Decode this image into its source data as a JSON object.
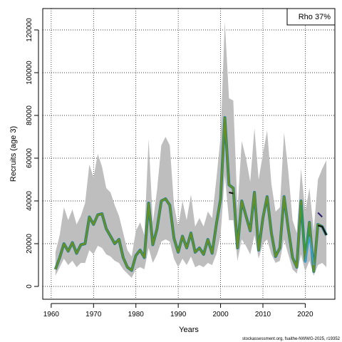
{
  "chart_data": {
    "type": "line",
    "xlabel": "Years",
    "ylabel": "Recruits (age 3)",
    "xlim": [
      1958,
      2027
    ],
    "ylim": [
      -6000,
      130000
    ],
    "xticks": [
      1960,
      1970,
      1980,
      1990,
      2000,
      2010,
      2020
    ],
    "yticks": [
      0,
      20000,
      40000,
      60000,
      80000,
      100000,
      120000
    ],
    "grid": true,
    "legend": {
      "text": "Rho 37%",
      "position": "top-right"
    },
    "source": "stockassessment.org, fsaithe-NWWG-2025, r19352",
    "colors": {
      "band": "#bebebe",
      "main": "#6b8e23",
      "main_edge": "#1e6fb5",
      "retro_dark": "#2a1a6e",
      "retro_black": "#111111",
      "retro_green": "#2e9a4a",
      "retro_blue": "#3aa0d8"
    },
    "x": [
      1961,
      1962,
      1963,
      1964,
      1965,
      1966,
      1967,
      1968,
      1969,
      1970,
      1971,
      1972,
      1973,
      1974,
      1975,
      1976,
      1977,
      1978,
      1979,
      1980,
      1981,
      1982,
      1983,
      1984,
      1985,
      1986,
      1987,
      1988,
      1989,
      1990,
      1991,
      1992,
      1993,
      1994,
      1995,
      1996,
      1997,
      1998,
      1999,
      2000,
      2001,
      2002,
      2003,
      2004,
      2005,
      2006,
      2007,
      2008,
      2009,
      2010,
      2011,
      2012,
      2013,
      2014,
      2015,
      2016,
      2017,
      2018,
      2019,
      2020,
      2021,
      2022,
      2023,
      2024,
      2025
    ],
    "band_upper": [
      16000,
      24000,
      37000,
      31000,
      36000,
      29000,
      33000,
      39000,
      57000,
      51000,
      62000,
      56000,
      46000,
      44000,
      38000,
      33000,
      25000,
      17000,
      14000,
      26000,
      30000,
      24000,
      69000,
      30000,
      45000,
      66000,
      70000,
      66000,
      38000,
      28000,
      40000,
      31000,
      43000,
      28000,
      32000,
      28000,
      35000,
      32000,
      50000,
      70000,
      124000,
      88000,
      87000,
      36000,
      68000,
      60000,
      49000,
      74000,
      50000,
      62000,
      73000,
      48000,
      35000,
      37000,
      72000,
      54000,
      31000,
      25000,
      55000,
      35000,
      46000,
      26000,
      50000,
      55000,
      59000
    ],
    "band_lower": [
      5000,
      9000,
      13000,
      10000,
      12000,
      9000,
      11000,
      11000,
      17000,
      15000,
      19000,
      18000,
      15000,
      14000,
      12000,
      11000,
      8000,
      6000,
      4000,
      8000,
      9000,
      8000,
      18000,
      11000,
      15000,
      21000,
      22000,
      21000,
      13000,
      9000,
      13000,
      10000,
      14000,
      9000,
      10000,
      9000,
      11000,
      10000,
      15000,
      24000,
      52000,
      31000,
      31000,
      12000,
      22000,
      19000,
      15000,
      24000,
      13000,
      20000,
      22000,
      15000,
      11000,
      12000,
      22000,
      15000,
      8000,
      6000,
      15000,
      7000,
      12000,
      5000,
      10000,
      11000,
      9000
    ],
    "series": [
      {
        "values": [
          8000,
          13500,
          20000,
          16500,
          20500,
          15500,
          19500,
          20000,
          32500,
          29000,
          33500,
          34000,
          27000,
          23500,
          20000,
          22000,
          13500,
          9000,
          7500,
          14500,
          17000,
          13500,
          39000,
          19500,
          27000,
          40000,
          41000,
          38000,
          22500,
          16000,
          23500,
          18000,
          25000,
          16000,
          18000,
          15000,
          22000,
          15500,
          29000,
          41000,
          79000,
          47500,
          46000,
          18000,
          40000,
          33000,
          26000,
          44000,
          17000,
          32000,
          42000,
          25000,
          14000,
          18000,
          42000,
          27000,
          13500,
          9000,
          40000,
          12000,
          30000,
          7000,
          29000,
          28000,
          24000
        ]
      },
      {
        "values": [
          null,
          null,
          null,
          null,
          null,
          null,
          null,
          null,
          null,
          null,
          null,
          null,
          null,
          null,
          null,
          null,
          null,
          null,
          null,
          null,
          null,
          null,
          null,
          null,
          null,
          null,
          null,
          null,
          null,
          null,
          null,
          null,
          null,
          null,
          null,
          null,
          null,
          null,
          null,
          null,
          null,
          null,
          null,
          null,
          null,
          null,
          null,
          null,
          null,
          null,
          null,
          null,
          null,
          null,
          null,
          null,
          null,
          null,
          null,
          null,
          null,
          null,
          34500,
          32500,
          null
        ]
      },
      {
        "values": [
          null,
          null,
          null,
          null,
          null,
          null,
          null,
          null,
          null,
          null,
          null,
          null,
          null,
          null,
          null,
          null,
          null,
          null,
          null,
          null,
          null,
          null,
          null,
          null,
          null,
          null,
          null,
          null,
          null,
          null,
          null,
          null,
          null,
          null,
          null,
          null,
          null,
          null,
          null,
          null,
          null,
          44000,
          43500,
          null,
          null,
          null,
          null,
          null,
          null,
          null,
          null,
          null,
          null,
          null,
          null,
          null,
          null,
          null,
          null,
          null,
          null,
          null,
          28500,
          28000,
          24000
        ]
      },
      {
        "values": [
          null,
          null,
          null,
          null,
          null,
          null,
          null,
          null,
          null,
          null,
          null,
          null,
          null,
          null,
          null,
          null,
          null,
          null,
          null,
          null,
          null,
          null,
          null,
          null,
          null,
          null,
          null,
          null,
          null,
          null,
          null,
          null,
          null,
          null,
          null,
          null,
          null,
          null,
          null,
          null,
          null,
          null,
          null,
          null,
          null,
          null,
          null,
          null,
          null,
          null,
          null,
          null,
          null,
          null,
          null,
          null,
          null,
          null,
          38000,
          17000,
          28000,
          null,
          null,
          null,
          null
        ]
      },
      {
        "values": [
          null,
          null,
          null,
          null,
          null,
          null,
          null,
          null,
          null,
          null,
          null,
          null,
          null,
          null,
          null,
          null,
          null,
          null,
          null,
          null,
          null,
          null,
          null,
          null,
          null,
          null,
          null,
          null,
          null,
          null,
          null,
          null,
          null,
          null,
          null,
          null,
          null,
          null,
          null,
          null,
          null,
          null,
          null,
          null,
          null,
          null,
          null,
          null,
          null,
          null,
          null,
          null,
          null,
          null,
          null,
          null,
          null,
          null,
          null,
          11000,
          23000,
          10000,
          null,
          null,
          null
        ]
      }
    ]
  }
}
